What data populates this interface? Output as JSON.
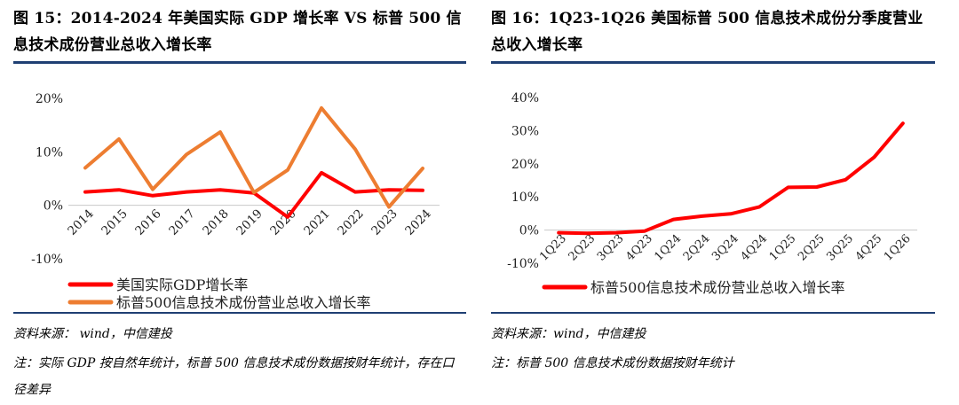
{
  "left": {
    "title": "图 15：2014-2024 年美国实际 GDP 增长率  VS  标普 500 信息技术成份营业总收入增长率",
    "source": "资料来源： wind，中信建投",
    "note": "注：实际 GDP 按自然年统计，标普 500 信息技术成份数据按财年统计，存在口径差异"
  },
  "right": {
    "title": "图 16：1Q23-1Q26 美国标普 500 信息技术成份分季度营业总收入增长率",
    "source": "资料来源：wind，中信建投",
    "note": "注：标普 500 信息技术成份数据按财年统计"
  },
  "chart_data": [
    {
      "type": "line",
      "categories": [
        "2014",
        "2015",
        "2016",
        "2017",
        "2018",
        "2019",
        "2020",
        "2021",
        "2022",
        "2023",
        "2024"
      ],
      "series": [
        {
          "name": "美国实际GDP增长率",
          "color": "#ff0000",
          "values": [
            2.5,
            2.9,
            1.8,
            2.5,
            2.9,
            2.3,
            -2.2,
            6.1,
            2.5,
            2.9,
            2.8
          ]
        },
        {
          "name": "标普500信息技术成份营业总收入增长率",
          "color": "#ed7d31",
          "values": [
            7.0,
            12.4,
            3.0,
            9.5,
            13.7,
            2.4,
            6.6,
            18.2,
            10.5,
            -0.3,
            6.9
          ]
        }
      ],
      "ylim": [
        -10,
        20
      ],
      "yticks": [
        "-10%",
        "0%",
        "10%",
        "20%"
      ],
      "legend": "bottom-left"
    },
    {
      "type": "line",
      "categories": [
        "1Q23",
        "2Q23",
        "3Q23",
        "4Q23",
        "1Q24",
        "2Q24",
        "3Q24",
        "4Q24",
        "1Q25",
        "2Q25",
        "3Q25",
        "4Q25",
        "1Q26"
      ],
      "series": [
        {
          "name": "标普500信息技术成份营业总收入增长率",
          "color": "#ff0000",
          "values": [
            -0.8,
            -1.0,
            -0.8,
            -0.3,
            3.2,
            4.2,
            4.9,
            7.0,
            12.9,
            13.0,
            15.2,
            22.0,
            32.2
          ]
        }
      ],
      "ylim": [
        -10,
        40
      ],
      "yticks": [
        "-10%",
        "0%",
        "10%",
        "20%",
        "30%",
        "40%"
      ],
      "legend": "bottom-center"
    }
  ]
}
